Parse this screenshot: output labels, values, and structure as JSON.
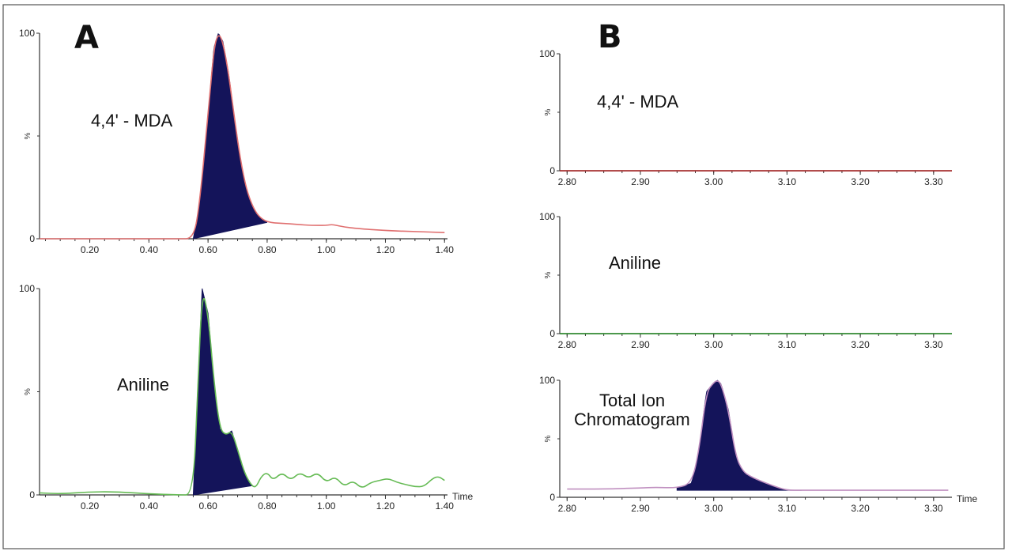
{
  "panels": [
    {
      "letter": "A"
    },
    {
      "letter": "B"
    }
  ],
  "chart_data": [
    {
      "type": "line",
      "panel": "A",
      "title": "4,4' - MDA",
      "xlabel": "",
      "ylabel": "%",
      "xlim": [
        0.03,
        1.41
      ],
      "ylim": [
        0,
        100
      ],
      "xticks": [
        "0.20",
        "0.40",
        "0.60",
        "0.80",
        "1.00",
        "1.20",
        "1.40"
      ],
      "yticks": [
        "0",
        "100"
      ],
      "line_color": "#e07070",
      "fill_color": "#14145a",
      "series": [
        {
          "name": "4,4' - MDA",
          "x": [
            0.03,
            0.2,
            0.4,
            0.5,
            0.55,
            0.57,
            0.6,
            0.62,
            0.635,
            0.65,
            0.67,
            0.69,
            0.71,
            0.73,
            0.75,
            0.77,
            0.8,
            0.85,
            0.9,
            0.95,
            1.0,
            1.02,
            1.05,
            1.1,
            1.2,
            1.3,
            1.4
          ],
          "values": [
            0,
            0,
            0,
            0,
            0,
            15,
            60,
            93,
            100,
            96,
            80,
            58,
            38,
            24,
            16,
            11,
            8,
            7.5,
            7,
            6.5,
            6.5,
            7,
            6,
            5,
            4,
            3.5,
            3
          ]
        }
      ],
      "peak_x": [
        0.55,
        0.8
      ]
    },
    {
      "type": "line",
      "panel": "A",
      "title": "Aniline",
      "xlabel": "Time",
      "ylabel": "%",
      "xlim": [
        0.03,
        1.41
      ],
      "ylim": [
        0,
        100
      ],
      "xticks": [
        "0.20",
        "0.40",
        "0.60",
        "0.80",
        "1.00",
        "1.20",
        "1.40"
      ],
      "yticks": [
        "0",
        "100"
      ],
      "line_color": "#66bb55",
      "fill_color": "#14145a",
      "series": [
        {
          "name": "Aniline",
          "x": [
            0.03,
            0.1,
            0.2,
            0.3,
            0.4,
            0.5,
            0.55,
            0.565,
            0.58,
            0.6,
            0.62,
            0.64,
            0.66,
            0.68,
            0.7,
            0.72,
            0.74,
            0.76,
            0.78,
            0.8,
            0.82,
            0.85,
            0.88,
            0.91,
            0.94,
            0.97,
            1.0,
            1.03,
            1.06,
            1.09,
            1.12,
            1.15,
            1.18,
            1.21,
            1.24,
            1.27,
            1.3,
            1.33,
            1.36,
            1.38,
            1.4
          ],
          "values": [
            1,
            0.5,
            1.5,
            1.5,
            0.5,
            0,
            0,
            50,
            100,
            88,
            55,
            32,
            29,
            31,
            22,
            12,
            6,
            3,
            9,
            11,
            7,
            11,
            7,
            11,
            8,
            11,
            6,
            9,
            4,
            7,
            3,
            6,
            7,
            8,
            6,
            5,
            4,
            4,
            8,
            9,
            7
          ]
        }
      ],
      "peak_x": [
        0.55,
        0.75
      ]
    },
    {
      "type": "line",
      "panel": "B",
      "title": "4,4' - MDA",
      "xlabel": "",
      "ylabel": "%",
      "xlim": [
        2.79,
        3.325
      ],
      "ylim": [
        0,
        100
      ],
      "xticks": [
        "2.80",
        "2.90",
        "3.00",
        "3.10",
        "3.20",
        "3.30"
      ],
      "yticks": [
        "0",
        "100"
      ],
      "line_color": "#aa2222",
      "series": [
        {
          "name": "4,4' - MDA",
          "x": [
            2.79,
            3.325
          ],
          "values": [
            0,
            0
          ]
        }
      ]
    },
    {
      "type": "line",
      "panel": "B",
      "title": "Aniline",
      "xlabel": "",
      "ylabel": "%",
      "xlim": [
        2.79,
        3.325
      ],
      "ylim": [
        0,
        100
      ],
      "xticks": [
        "2.80",
        "2.90",
        "3.00",
        "3.10",
        "3.20",
        "3.30"
      ],
      "yticks": [
        "0",
        "100"
      ],
      "line_color": "#228822",
      "series": [
        {
          "name": "Aniline",
          "x": [
            2.79,
            3.325
          ],
          "values": [
            0,
            0
          ]
        }
      ]
    },
    {
      "type": "area",
      "panel": "B",
      "title": "Total Ion Chromatogram",
      "title_lines": [
        "Total Ion",
        "Chromatogram"
      ],
      "xlabel": "Time",
      "ylabel": "%",
      "xlim": [
        2.79,
        3.325
      ],
      "ylim": [
        0,
        100
      ],
      "xticks": [
        "2.80",
        "2.90",
        "3.00",
        "3.10",
        "3.20",
        "3.30"
      ],
      "yticks": [
        "0",
        "100"
      ],
      "line_color": "#c090c0",
      "fill_color": "#14145a",
      "series": [
        {
          "name": "Total Ion Chromatogram",
          "x": [
            2.8,
            2.85,
            2.9,
            2.92,
            2.95,
            2.97,
            2.98,
            2.99,
            3.0,
            3.005,
            3.01,
            3.02,
            3.03,
            3.04,
            3.05,
            3.06,
            3.08,
            3.1,
            3.12,
            3.15,
            3.2,
            3.25,
            3.32
          ],
          "values": [
            7,
            7,
            8,
            8.5,
            8,
            12,
            40,
            90,
            98,
            100,
            97,
            75,
            35,
            22,
            18,
            15,
            10,
            6,
            6,
            6,
            6,
            6,
            6
          ]
        }
      ],
      "peak_x": [
        2.95,
        3.12
      ],
      "peak_baseline": 6
    }
  ]
}
